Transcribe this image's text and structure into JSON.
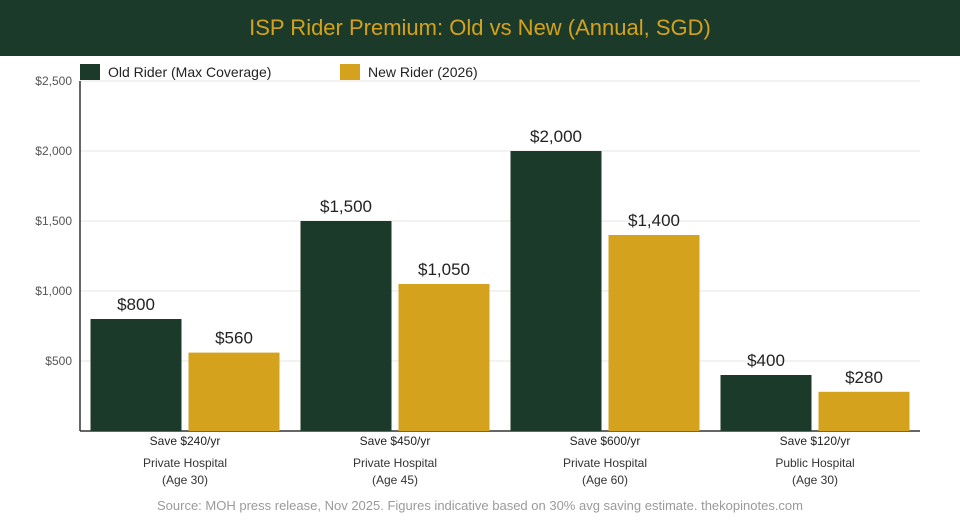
{
  "title": "ISP Rider Premium: Old vs New (Annual, SGD)",
  "source": "Source: MOH press release, Nov 2025. Figures indicative based on 30% avg saving estimate. thekopinotes.com",
  "colors": {
    "title_bg": "#1c3a2a",
    "title_text": "#d4a21c",
    "old": "#1c3a2a",
    "new": "#d4a21c"
  },
  "chart_data": {
    "type": "bar",
    "categories": [
      [
        "Private Hospital",
        "(Age 30)"
      ],
      [
        "Private Hospital",
        "(Age 45)"
      ],
      [
        "Private Hospital",
        "(Age 60)"
      ],
      [
        "Public Hospital",
        "(Age 30)"
      ]
    ],
    "savings": [
      "Save $240/yr",
      "Save $450/yr",
      "Save $600/yr",
      "Save $120/yr"
    ],
    "series": [
      {
        "name": "Old Rider (Max Coverage)",
        "color": "#1c3a2a",
        "values": [
          800,
          1500,
          2000,
          400
        ],
        "labels": [
          "$800",
          "$1,500",
          "$2,000",
          "$400"
        ]
      },
      {
        "name": "New Rider (2026)",
        "color": "#d4a21c",
        "values": [
          560,
          1050,
          1400,
          280
        ],
        "labels": [
          "$560",
          "$1,050",
          "$1,400",
          "$280"
        ]
      }
    ],
    "ylim": [
      0,
      2500
    ],
    "yticks": [
      500,
      1000,
      1500,
      2000,
      2500
    ],
    "ytick_labels": [
      "$500",
      "$1,000",
      "$1,500",
      "$2,000",
      "$2,500"
    ],
    "grid": true,
    "legend": "top-left"
  }
}
